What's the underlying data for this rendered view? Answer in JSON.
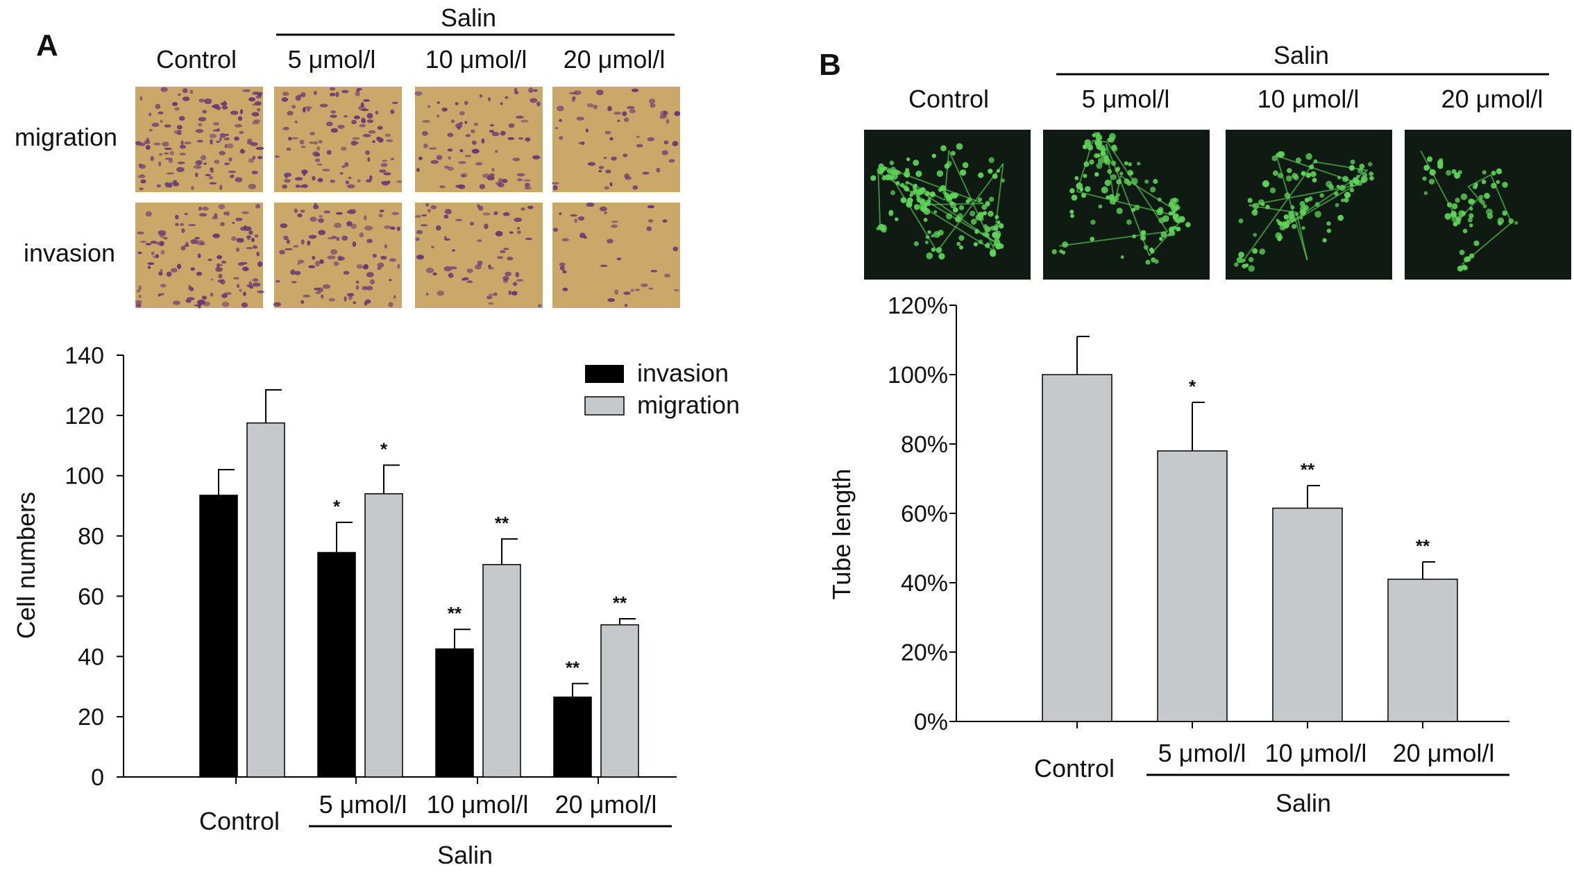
{
  "panel_a": {
    "letter": "A",
    "micro": {
      "group_label": "Salin",
      "col_labels": [
        "Control",
        "5 μmol/l",
        "10 μmol/l",
        "20 μmol/l"
      ],
      "row_labels": [
        "migration",
        "invasion"
      ],
      "density": [
        [
          1.0,
          0.8,
          0.6,
          0.42
        ],
        [
          0.9,
          0.7,
          0.5,
          0.28
        ]
      ],
      "colors": {
        "background": "#c9a86a",
        "cell": "#6b3a73"
      }
    }
  },
  "panel_b": {
    "letter": "B",
    "micro": {
      "group_label": "Salin",
      "col_labels": [
        "Control",
        "5 μmol/l",
        "10 μmol/l",
        "20 μmol/l"
      ],
      "density": [
        1.0,
        0.75,
        0.65,
        0.4
      ],
      "colors": {
        "background": "#0f1a12",
        "cell": "#5fd35a"
      }
    }
  },
  "chart_data": [
    {
      "type": "bar",
      "panel": "A",
      "ylabel": "Cell numbers",
      "ylim": [
        0,
        140
      ],
      "yticks": [
        0,
        20,
        40,
        60,
        80,
        100,
        120,
        140
      ],
      "categories": [
        "Control",
        "5 μmol/l",
        "10 μmol/l",
        "20 μmol/l"
      ],
      "group_label": "Salin",
      "legend_position": "top-right",
      "series": [
        {
          "name": "invasion",
          "color": "#000000",
          "values": [
            93.5,
            74.5,
            42.5,
            26.5
          ],
          "errors": [
            8.5,
            10,
            6.5,
            4.5
          ],
          "stars": [
            "",
            "*",
            "**",
            "**"
          ]
        },
        {
          "name": "migration",
          "color": "#c5c9cc",
          "values": [
            117.5,
            94,
            70.5,
            50.5
          ],
          "errors": [
            11,
            9.5,
            8.5,
            2
          ],
          "stars": [
            "",
            "*",
            "**",
            "**"
          ]
        }
      ]
    },
    {
      "type": "bar",
      "panel": "B",
      "ylabel": "Tube length",
      "ylim": [
        0,
        120
      ],
      "yticks": [
        0,
        20,
        40,
        60,
        80,
        100,
        120
      ],
      "ytick_labels": [
        "0%",
        "20%",
        "40%",
        "60%",
        "80%",
        "100%",
        "120%"
      ],
      "categories": [
        "Control",
        "5 μmol/l",
        "10 μmol/l",
        "20 μmol/l"
      ],
      "group_label": "Salin",
      "series": [
        {
          "color": "#c5c9cc",
          "values": [
            100,
            78,
            61.5,
            41
          ],
          "errors": [
            11,
            14,
            6.5,
            5
          ],
          "stars": [
            "",
            "*",
            "**",
            "**"
          ]
        }
      ]
    }
  ]
}
